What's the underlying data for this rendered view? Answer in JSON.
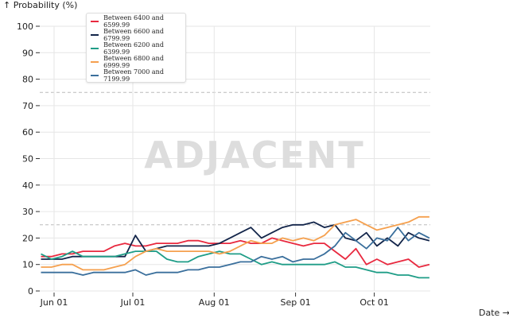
{
  "chart_data": {
    "type": "line",
    "title": "",
    "xlabel": "Date →",
    "ylabel": "↑ Probability (%)",
    "watermark": "ADJACENT",
    "ylim": [
      0,
      100
    ],
    "yticks": [
      0,
      10,
      20,
      30,
      40,
      50,
      60,
      70,
      80,
      90,
      100
    ],
    "dashed_reference_lines": [
      25,
      75
    ],
    "x_unit": "days since Jun 01",
    "xticks": [
      {
        "day": 0,
        "label": "Jun 01"
      },
      {
        "day": 30,
        "label": "Jul 01"
      },
      {
        "day": 61,
        "label": "Aug 01"
      },
      {
        "day": 92,
        "label": "Sep 01"
      },
      {
        "day": 122,
        "label": "Oct 01"
      }
    ],
    "x": [
      -5,
      -1,
      3,
      7,
      11,
      15,
      19,
      23,
      27,
      31,
      35,
      39,
      43,
      47,
      51,
      55,
      59,
      63,
      67,
      71,
      75,
      79,
      83,
      87,
      91,
      95,
      99,
      103,
      107,
      111,
      115,
      119,
      123,
      127,
      131,
      135,
      139,
      143
    ],
    "legend_position": "top-left",
    "series": [
      {
        "name": "Between 6400 and 6599.99",
        "color": "#e8293f",
        "values": [
          13,
          13,
          14,
          14,
          15,
          15,
          15,
          17,
          18,
          17,
          17,
          18,
          18,
          18,
          19,
          19,
          18,
          18,
          18,
          19,
          18,
          18,
          20,
          19,
          18,
          17,
          18,
          18,
          15,
          12,
          16,
          10,
          12,
          10,
          11,
          12,
          9,
          10
        ]
      },
      {
        "name": "Between 6600 and 6799.99",
        "color": "#13254a",
        "values": [
          12,
          12,
          12,
          13,
          13,
          13,
          13,
          13,
          13,
          21,
          15,
          16,
          17,
          17,
          17,
          17,
          17,
          18,
          20,
          22,
          24,
          20,
          22,
          24,
          25,
          25,
          26,
          24,
          25,
          20,
          19,
          22,
          17,
          20,
          17,
          22,
          20,
          19
        ]
      },
      {
        "name": "Between 6200 and 6399.99",
        "color": "#1f9d87",
        "values": [
          14,
          12,
          13,
          15,
          13,
          13,
          13,
          13,
          14,
          15,
          15,
          15,
          12,
          11,
          11,
          13,
          14,
          15,
          14,
          14,
          12,
          10,
          11,
          10,
          10,
          10,
          10,
          10,
          11,
          9,
          9,
          8,
          7,
          7,
          6,
          6,
          5,
          5
        ]
      },
      {
        "name": "Between 6800 and 6999.99",
        "color": "#f5a04e",
        "values": [
          9,
          9,
          10,
          10,
          8,
          8,
          8,
          9,
          10,
          13,
          15,
          16,
          15,
          15,
          15,
          15,
          15,
          14,
          15,
          17,
          19,
          18,
          18,
          20,
          19,
          20,
          19,
          21,
          25,
          26,
          27,
          25,
          23,
          24,
          25,
          26,
          28,
          28
        ]
      },
      {
        "name": "Between 7000 and 7199.99",
        "color": "#3a6f9c",
        "values": [
          7,
          7,
          7,
          7,
          6,
          7,
          7,
          7,
          7,
          8,
          6,
          7,
          7,
          7,
          8,
          8,
          9,
          9,
          10,
          11,
          11,
          13,
          12,
          13,
          11,
          12,
          12,
          14,
          17,
          22,
          19,
          16,
          20,
          19,
          24,
          19,
          22,
          20
        ]
      }
    ]
  }
}
